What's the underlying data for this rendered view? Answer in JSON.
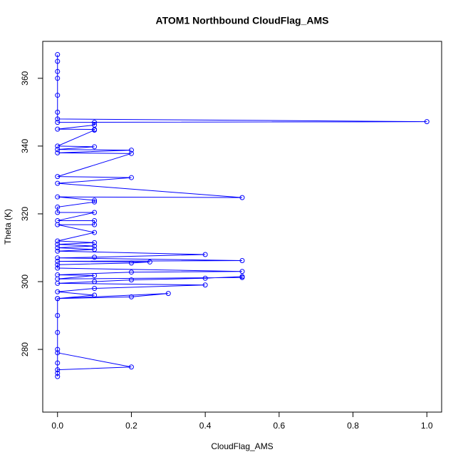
{
  "chart_data": {
    "type": "line",
    "title": "ATOM1 Northbound CloudFlag_AMS",
    "x_label": "CloudFlag_AMS",
    "y_label": "Theta (K)",
    "x": [
      0,
      0,
      0,
      0.2,
      0,
      0,
      0,
      0,
      0,
      0,
      0.2,
      0.3,
      0,
      0.1,
      0,
      0.1,
      0.4,
      0,
      0.1,
      0.2,
      0.4,
      0.5,
      0.5,
      0,
      0.1,
      0,
      0.2,
      0.5,
      0,
      0,
      0.2,
      0.25,
      0,
      0.5,
      0,
      0.1,
      0.4,
      0,
      0.1,
      0,
      0.1,
      0,
      0.1,
      0,
      0.1,
      0,
      0.1,
      0.1,
      0,
      0.1,
      0,
      0,
      0.1,
      0.1,
      0,
      0.5,
      0,
      0.2,
      0,
      0.2,
      0,
      0.2,
      0,
      0.1,
      0,
      0.1,
      0.1,
      0,
      0.1,
      0.1,
      0,
      1.0,
      0,
      0,
      0,
      0,
      0,
      0,
      0
    ],
    "values": [
      272,
      273,
      279,
      274.8,
      274,
      276,
      280,
      285,
      290,
      295,
      295.5,
      296.5,
      295,
      296,
      297,
      298,
      299,
      299.5,
      300,
      300.5,
      301,
      301.5,
      301.2,
      300.8,
      301.8,
      302,
      302.8,
      303,
      304,
      305,
      305.5,
      305.8,
      306,
      306.2,
      307,
      307.2,
      308,
      309,
      309.5,
      310,
      310.5,
      311,
      311.5,
      312,
      314.5,
      316.8,
      316.8,
      318,
      318,
      320.4,
      320.4,
      322,
      323.5,
      324,
      325,
      324.8,
      329,
      330.7,
      331,
      337.8,
      338,
      338.8,
      339,
      339.8,
      340,
      344.7,
      344.9,
      345,
      346.2,
      347,
      347,
      347.2,
      348,
      350,
      355,
      360,
      362,
      365,
      367
    ],
    "color": "#0000ff",
    "xlim": [
      -0.04,
      1.04
    ],
    "ylim": [
      261.5,
      370.9
    ],
    "xticks": [
      {
        "value": 0,
        "label": "0.0"
      },
      0.2,
      0.4,
      0.6,
      0.8,
      {
        "value": 1,
        "label": "1.0"
      }
    ],
    "yticks": [
      280,
      300,
      320,
      340,
      360
    ]
  }
}
